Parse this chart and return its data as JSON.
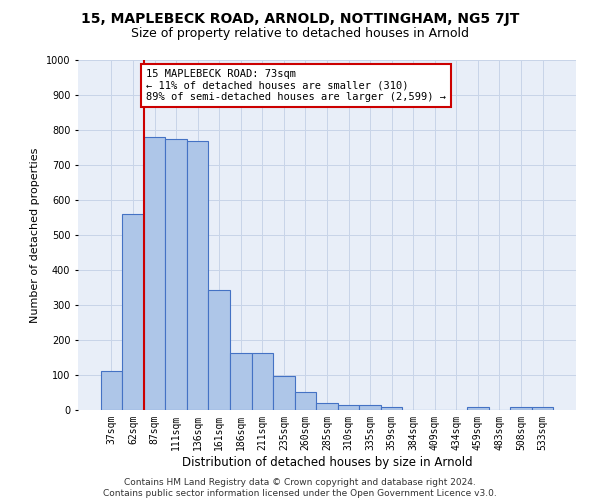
{
  "title_line1": "15, MAPLEBECK ROAD, ARNOLD, NOTTINGHAM, NG5 7JT",
  "title_line2": "Size of property relative to detached houses in Arnold",
  "xlabel": "Distribution of detached houses by size in Arnold",
  "ylabel": "Number of detached properties",
  "categories": [
    "37sqm",
    "62sqm",
    "87sqm",
    "111sqm",
    "136sqm",
    "161sqm",
    "186sqm",
    "211sqm",
    "235sqm",
    "260sqm",
    "285sqm",
    "310sqm",
    "335sqm",
    "359sqm",
    "384sqm",
    "409sqm",
    "434sqm",
    "459sqm",
    "483sqm",
    "508sqm",
    "533sqm"
  ],
  "values": [
    112,
    560,
    780,
    775,
    770,
    343,
    163,
    163,
    98,
    52,
    20,
    15,
    15,
    10,
    0,
    0,
    0,
    10,
    0,
    10,
    10
  ],
  "bar_color": "#aec6e8",
  "bar_edge_color": "#4472c4",
  "annotation_line1": "15 MAPLEBECK ROAD: 73sqm",
  "annotation_line2": "← 11% of detached houses are smaller (310)",
  "annotation_line3": "89% of semi-detached houses are larger (2,599) →",
  "annotation_box_color": "#ffffff",
  "annotation_box_edge_color": "#cc0000",
  "vline_color": "#cc0000",
  "ylim": [
    0,
    1000
  ],
  "yticks": [
    0,
    100,
    200,
    300,
    400,
    500,
    600,
    700,
    800,
    900,
    1000
  ],
  "grid_color": "#c8d4e8",
  "background_color": "#e8eef8",
  "footer_line1": "Contains HM Land Registry data © Crown copyright and database right 2024.",
  "footer_line2": "Contains public sector information licensed under the Open Government Licence v3.0.",
  "title1_fontsize": 10,
  "title2_fontsize": 9,
  "xlabel_fontsize": 8.5,
  "ylabel_fontsize": 8,
  "tick_fontsize": 7,
  "annotation_fontsize": 7.5,
  "footer_fontsize": 6.5
}
